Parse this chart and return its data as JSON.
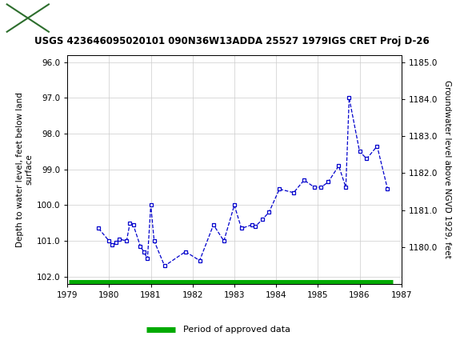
{
  "title": "USGS 423646095020101 090N36W13ADDA 25527 1979IGS CRET Proj D-26",
  "ylabel_left": "Depth to water level, feet below land\nsurface",
  "ylabel_right": "Groundwater level above NGVD 1929, feet",
  "xlim": [
    1979.0,
    1987.0
  ],
  "ylim_left": [
    102.2,
    95.8
  ],
  "ylim_right": [
    1179.0,
    1185.2
  ],
  "yticks_left": [
    96.0,
    97.0,
    98.0,
    99.0,
    100.0,
    101.0,
    102.0
  ],
  "yticks_right": [
    1180.0,
    1181.0,
    1182.0,
    1183.0,
    1184.0,
    1185.0
  ],
  "xticks": [
    1979,
    1980,
    1981,
    1982,
    1983,
    1984,
    1985,
    1986,
    1987
  ],
  "data_x": [
    1979.75,
    1980.0,
    1980.08,
    1980.17,
    1980.25,
    1980.42,
    1980.5,
    1980.58,
    1980.75,
    1980.83,
    1980.92,
    1981.0,
    1981.08,
    1981.33,
    1981.83,
    1982.17,
    1982.5,
    1982.75,
    1983.0,
    1983.17,
    1983.42,
    1983.5,
    1983.67,
    1983.83,
    1984.08,
    1984.42,
    1984.67,
    1984.92,
    1985.08,
    1985.25,
    1985.5,
    1985.67,
    1985.75,
    1986.0,
    1986.17,
    1986.42,
    1986.67
  ],
  "data_y": [
    100.65,
    101.0,
    101.1,
    101.05,
    100.95,
    101.0,
    100.5,
    100.55,
    101.15,
    101.3,
    101.5,
    100.0,
    101.0,
    101.7,
    101.3,
    101.55,
    100.55,
    101.0,
    100.0,
    100.65,
    100.55,
    100.6,
    100.4,
    100.2,
    99.55,
    99.65,
    99.3,
    99.5,
    99.5,
    99.35,
    98.9,
    99.5,
    97.0,
    98.5,
    98.7,
    98.35,
    99.55
  ],
  "line_color": "#0000cc",
  "marker_color": "#0000cc",
  "background_color": "#ffffff",
  "header_bg": "#2d6e2d",
  "green_bar_color": "#00aa00",
  "legend_label": "Period of approved data"
}
